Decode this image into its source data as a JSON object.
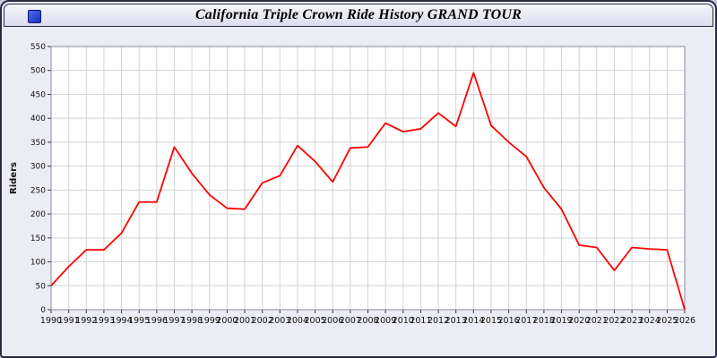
{
  "window": {
    "title": "California Triple Crown Ride History GRAND TOUR"
  },
  "chart_data": {
    "type": "line",
    "title": "California Triple Crown Ride History GRAND TOUR",
    "xlabel": "",
    "ylabel": "Riders",
    "ylim": [
      0,
      550
    ],
    "ytick_step": 50,
    "grid": true,
    "legend_position": "none",
    "x": [
      1990,
      1991,
      1992,
      1993,
      1994,
      1995,
      1996,
      1997,
      1998,
      1999,
      2000,
      2001,
      2002,
      2003,
      2004,
      2005,
      2006,
      2007,
      2008,
      2009,
      2010,
      2011,
      2012,
      2013,
      2014,
      2015,
      2016,
      2017,
      2018,
      2019,
      2020,
      2021,
      2022,
      2023,
      2024,
      2025,
      2026
    ],
    "series": [
      {
        "name": "Riders",
        "color": "#ff0000",
        "values": [
          50,
          90,
          125,
          125,
          160,
          225,
          225,
          340,
          285,
          240,
          212,
          210,
          265,
          280,
          343,
          310,
          267,
          338,
          340,
          390,
          372,
          378,
          411,
          383,
          495,
          385,
          350,
          320,
          255,
          210,
          135,
          130,
          82,
          130,
          127,
          125,
          0
        ]
      }
    ],
    "colors": {
      "plot_background": "#ffffff",
      "panel_background": "#ececf7",
      "gridline": "#d4d4d4",
      "axis": "#333333",
      "line": "#ff0000"
    }
  }
}
